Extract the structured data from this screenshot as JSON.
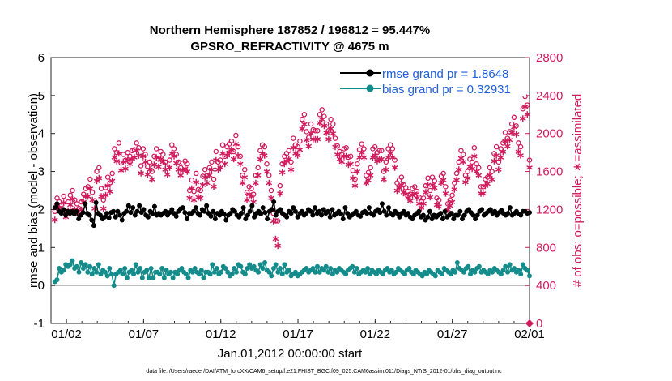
{
  "chart_data": {
    "type": "line",
    "title_line1": "Northern Hemisphere 187852 / 196812 = 95.447%",
    "title_line2": "GPSRO_REFRACTIVITY @ 4675 m",
    "xlabel": "Jan.01,2012 00:00:00 start",
    "ylabel_left": "rmse and bias (model - observation)",
    "ylabel_right": "# of obs: o=possible; ∗=assimilated",
    "footer": "data file: /Users/raeder/DAI/ATM_forcXX/CAM6_setup/f.e21.FHIST_BGC.f09_025.CAM6assim.011/Diags_NTrS_2012-01/obs_diag_output.nc",
    "xlim": [
      0,
      31
    ],
    "ylim_left": [
      -1,
      6
    ],
    "ylim_right": [
      0,
      2800
    ],
    "x_ticks": [
      1,
      6,
      11,
      16,
      21,
      26,
      31
    ],
    "x_tick_labels": [
      "01/02",
      "01/07",
      "01/12",
      "01/17",
      "01/22",
      "01/27",
      "02/01"
    ],
    "y_left_ticks": [
      "-1",
      "0",
      "1",
      "2",
      "3",
      "4",
      "5",
      "6"
    ],
    "y_right_ticks": [
      "0",
      "400",
      "800",
      "1200",
      "1600",
      "2000",
      "2400",
      "2800"
    ],
    "legend": [
      {
        "name": "rmse grand pr = 1.8648",
        "color": "#000000"
      },
      {
        "name": "bias grand pr = 0.32931",
        "color": "#148c8c"
      }
    ],
    "colors": {
      "rmse": "#000000",
      "bias": "#148c8c",
      "obs": "#d01c5c",
      "zero_line": "#b4b4b4"
    },
    "rmse": [
      2.05,
      2.15,
      1.95,
      1.9,
      2.0,
      1.85,
      1.95,
      1.9,
      1.95,
      1.88,
      1.95,
      1.75,
      1.85,
      1.92,
      2.15,
      1.9,
      1.85,
      1.72,
      1.58,
      2.18,
      1.9,
      1.85,
      1.75,
      1.8,
      1.9,
      1.78,
      1.92,
      1.95,
      1.8,
      1.95,
      1.85,
      1.72,
      1.9,
      1.95,
      2.1,
      1.92,
      2.05,
      1.85,
      1.95,
      2.1,
      1.92,
      2.0,
      1.85,
      1.8,
      1.95,
      1.88,
      2.08,
      1.85,
      1.9,
      1.85,
      1.9,
      1.95,
      1.85,
      1.92,
      2.0,
      1.9,
      1.82,
      1.95,
      2.02,
      2.05,
      1.92,
      1.75,
      1.9,
      1.9,
      1.95,
      2.05,
      1.9,
      1.85,
      2.0,
      1.95,
      2.1,
      1.9,
      1.82,
      1.95,
      1.75,
      1.9,
      1.85,
      1.95,
      1.88,
      1.72,
      1.85,
      1.9,
      2.0,
      1.95,
      1.85,
      1.8,
      1.9,
      2.05,
      1.75,
      1.85,
      1.95,
      2.1,
      1.8,
      1.9,
      1.95,
      1.88,
      2.05,
      1.92,
      1.75,
      1.95,
      2.0,
      2.2,
      1.85,
      1.95,
      2.0,
      1.9,
      1.85,
      1.8,
      1.95,
      1.9,
      2.05,
      1.95,
      1.8,
      1.9,
      1.95,
      1.85,
      1.9,
      2.0,
      1.95,
      1.85,
      2.05,
      1.9,
      1.95,
      1.85,
      2.0,
      1.9,
      1.95,
      1.8,
      2.0,
      1.85,
      1.9,
      1.95,
      1.88,
      1.75,
      2.05,
      1.9,
      1.8,
      1.85,
      1.9,
      1.95,
      1.85,
      1.82,
      1.92,
      1.95,
      1.9,
      2.05,
      1.9,
      1.85,
      1.95,
      2.0,
      1.92,
      2.15,
      1.95,
      1.85,
      2.05,
      1.9,
      1.85,
      1.95,
      1.9,
      1.8,
      1.9,
      1.95,
      1.85,
      1.9,
      1.8,
      1.75,
      1.85,
      1.9,
      1.95,
      1.8,
      1.85,
      1.72,
      1.8,
      1.95,
      1.75,
      1.85,
      1.8,
      1.85,
      1.9,
      1.75,
      1.95,
      1.8,
      1.85,
      1.9,
      1.75,
      1.85,
      1.85,
      1.95,
      1.75,
      1.85,
      1.95,
      2.0,
      1.92,
      1.85,
      1.75,
      1.85,
      1.95,
      2.0,
      1.85,
      1.9,
      1.95,
      2.0,
      1.9,
      1.95,
      1.85,
      1.92,
      1.98,
      1.9,
      1.85,
      1.9,
      2.05,
      1.85,
      1.9,
      1.95,
      1.88,
      1.85,
      1.95,
      1.95,
      1.9,
      1.92
    ],
    "bias": [
      0.1,
      0.15,
      0.45,
      0.35,
      0.4,
      0.55,
      0.5,
      0.55,
      0.65,
      0.45,
      0.5,
      0.35,
      0.6,
      0.45,
      0.55,
      0.35,
      0.5,
      0.3,
      0.45,
      0.35,
      0.55,
      0.3,
      0.4,
      0.35,
      0.25,
      0.45,
      0.3,
      0.0,
      0.3,
      0.35,
      0.4,
      0.3,
      0.45,
      0.2,
      0.35,
      0.4,
      0.3,
      0.55,
      0.35,
      0.45,
      0.2,
      0.35,
      0.4,
      0.2,
      0.45,
      0.2,
      0.35,
      0.35,
      0.3,
      0.45,
      0.2,
      0.4,
      0.3,
      0.35,
      0.2,
      0.35,
      0.3,
      0.4,
      0.45,
      0.35,
      0.3,
      0.2,
      0.4,
      0.35,
      0.45,
      0.35,
      0.3,
      0.4,
      0.2,
      0.35,
      0.35,
      0.3,
      0.55,
      0.35,
      0.45,
      0.3,
      0.35,
      0.5,
      0.45,
      0.35,
      0.25,
      0.3,
      0.45,
      0.35,
      0.55,
      0.5,
      0.35,
      0.3,
      0.45,
      0.55,
      0.45,
      0.5,
      0.4,
      0.35,
      0.55,
      0.45,
      0.6,
      0.4,
      0.35,
      0.25,
      0.45,
      0.55,
      0.35,
      0.45,
      0.3,
      0.55,
      0.35,
      0.4,
      0.25,
      0.3,
      0.35,
      0.25,
      0.3,
      0.35,
      0.4,
      0.45,
      0.35,
      0.4,
      0.45,
      0.35,
      0.5,
      0.35,
      0.45,
      0.4,
      0.5,
      0.35,
      0.45,
      0.3,
      0.4,
      0.35,
      0.45,
      0.4,
      0.35,
      0.3,
      0.4,
      0.45,
      0.5,
      0.35,
      0.45,
      0.3,
      0.35,
      0.4,
      0.35,
      0.45,
      0.3,
      0.4,
      0.35,
      0.3,
      0.4,
      0.35,
      0.3,
      0.4,
      0.45,
      0.35,
      0.4,
      0.3,
      0.35,
      0.45,
      0.4,
      0.35,
      0.3,
      0.4,
      0.45,
      0.35,
      0.3,
      0.4,
      0.35,
      0.3,
      0.25,
      0.35,
      0.3,
      0.4,
      0.35,
      0.3,
      0.25,
      0.4,
      0.35,
      0.3,
      0.45,
      0.4,
      0.35,
      0.3,
      0.4,
      0.35,
      0.6,
      0.45,
      0.4,
      0.35,
      0.45,
      0.5,
      0.3,
      0.4,
      0.35,
      0.45,
      0.5,
      0.35,
      0.4,
      0.35,
      0.3,
      0.4,
      0.35,
      0.45,
      0.4,
      0.35,
      0.3,
      0.4,
      0.5,
      0.35,
      0.55,
      0.4,
      0.45,
      0.35,
      0.4,
      0.3,
      0.55,
      0.45,
      0.4,
      0.25
    ],
    "obs_possible": [
      1180,
      1320,
      1280,
      1250,
      1340,
      1180,
      1280,
      1350,
      1400,
      1300,
      1260,
      1210,
      1280,
      1360,
      1420,
      1440,
      1520,
      1380,
      1290,
      1600,
      1640,
      1420,
      1300,
      1430,
      1540,
      1480,
      1580,
      1840,
      1800,
      1900,
      1690,
      1780,
      1720,
      1800,
      1760,
      1820,
      1830,
      1900,
      1850,
      1660,
      1840,
      1780,
      1650,
      1700,
      1600,
      1760,
      1840,
      1730,
      1810,
      1780,
      1700,
      1650,
      1720,
      1880,
      1840,
      1780,
      1700,
      1640,
      1690,
      1710,
      1680,
      1400,
      1510,
      1390,
      1580,
      1410,
      1400,
      1550,
      1620,
      1560,
      1640,
      1700,
      1520,
      1810,
      1700,
      1720,
      1880,
      1760,
      1860,
      1890,
      1920,
      1810,
      1980,
      1860,
      1760,
      1560,
      1620,
      1380,
      1440,
      1420,
      1360,
      1560,
      1640,
      1820,
      1880,
      1860,
      1680,
      1560,
      1400,
      1160,
      1080,
      1080,
      1450,
      1680,
      1760,
      1790,
      1820,
      1700,
      1950,
      1880,
      1860,
      1920,
      2150,
      2200,
      2020,
      1960,
      2100,
      2040,
      2030,
      2030,
      2200,
      2250,
      2180,
      2100,
      2030,
      2150,
      2100,
      1950,
      1870,
      1810,
      1780,
      1840,
      1850,
      1750,
      1760,
      1610,
      1520,
      1680,
      1830,
      1890,
      1840,
      1560,
      1590,
      1640,
      1840,
      1860,
      1800,
      1820,
      1820,
      1600,
      1700,
      1840,
      1880,
      1840,
      1720,
      1480,
      1510,
      1540,
      1460,
      1430,
      1390,
      1360,
      1420,
      1440,
      1390,
      1330,
      1280,
      1320,
      1450,
      1530,
      1400,
      1540,
      1500,
      1320,
      1300,
      1550,
      1580,
      1440,
      1260,
      1300,
      1350,
      1480,
      1580,
      1700,
      1820,
      1780,
      1560,
      1600,
      1730,
      1700,
      1850,
      1680,
      1640,
      1440,
      1440,
      1520,
      1540,
      1640,
      1600,
      1790,
      1860,
      1700,
      1840,
      1900,
      2010,
      1950,
      2020,
      2100,
      2170,
      2080,
      1900,
      1860,
      2260,
      2390,
      2300,
      1720
    ],
    "obs_assimilated": [
      1100,
      1250,
      1230,
      1200,
      1280,
      1130,
      1200,
      1260,
      1320,
      1210,
      1200,
      1160,
      1210,
      1290,
      1350,
      1350,
      1430,
      1310,
      1220,
      1510,
      1540,
      1350,
      1220,
      1360,
      1460,
      1400,
      1510,
      1760,
      1720,
      1800,
      1620,
      1710,
      1640,
      1730,
      1690,
      1740,
      1760,
      1830,
      1780,
      1590,
      1770,
      1710,
      1580,
      1630,
      1530,
      1680,
      1760,
      1660,
      1740,
      1710,
      1630,
      1580,
      1650,
      1800,
      1770,
      1700,
      1630,
      1570,
      1620,
      1640,
      1610,
      1330,
      1430,
      1310,
      1500,
      1340,
      1330,
      1470,
      1550,
      1490,
      1570,
      1630,
      1450,
      1730,
      1630,
      1650,
      1800,
      1690,
      1780,
      1810,
      1840,
      1740,
      1900,
      1780,
      1690,
      1490,
      1550,
      1310,
      1370,
      1350,
      1290,
      1490,
      1570,
      1740,
      1800,
      1780,
      1610,
      1490,
      1330,
      1090,
      900,
      830,
      1380,
      1600,
      1690,
      1720,
      1740,
      1630,
      1860,
      1800,
      1780,
      1840,
      2060,
      2110,
      1940,
      1880,
      2010,
      1950,
      1950,
      1950,
      2120,
      2160,
      2090,
      2020,
      1950,
      2060,
      2010,
      1870,
      1790,
      1740,
      1710,
      1770,
      1770,
      1680,
      1690,
      1540,
      1460,
      1610,
      1760,
      1810,
      1760,
      1490,
      1520,
      1570,
      1760,
      1780,
      1720,
      1740,
      1740,
      1530,
      1630,
      1760,
      1800,
      1760,
      1650,
      1410,
      1440,
      1470,
      1390,
      1370,
      1330,
      1300,
      1360,
      1380,
      1330,
      1270,
      1230,
      1270,
      1390,
      1470,
      1340,
      1470,
      1440,
      1260,
      1240,
      1490,
      1520,
      1380,
      1210,
      1250,
      1290,
      1420,
      1520,
      1630,
      1750,
      1710,
      1500,
      1540,
      1660,
      1640,
      1770,
      1610,
      1570,
      1380,
      1380,
      1460,
      1480,
      1570,
      1530,
      1720,
      1780,
      1630,
      1760,
      1820,
      1930,
      1880,
      1940,
      2020,
      2080,
      2000,
      1820,
      1780,
      2170,
      2290,
      2210,
      1650
    ]
  }
}
